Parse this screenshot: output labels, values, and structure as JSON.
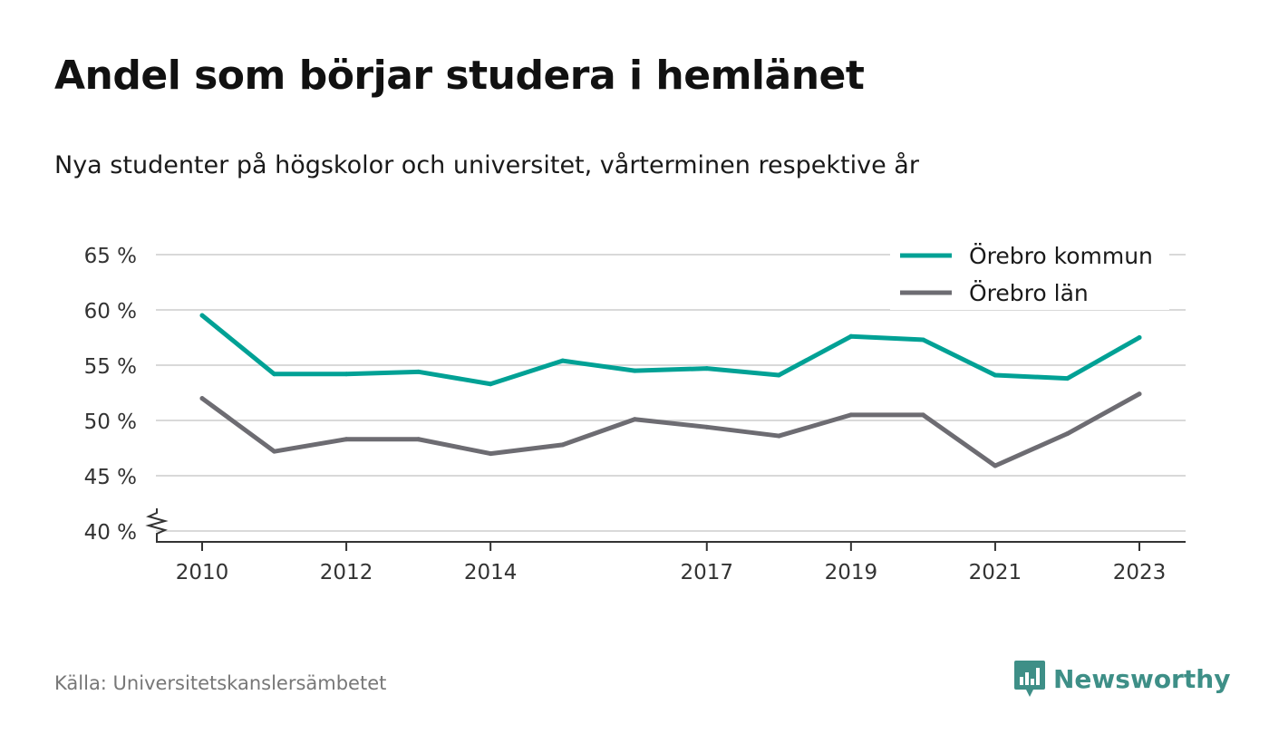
{
  "title": "Andel som börjar studera i hemlänet",
  "subtitle": "Nya studenter på högskolor och universitet, vårterminen respektive år",
  "source": "Källa: Universitetskanslersämbetet",
  "brand": {
    "name": "Newsworthy",
    "icon": "newsworthy-logo-icon",
    "color": "#3e8f87"
  },
  "chart_data": {
    "type": "line",
    "x": [
      2010,
      2011,
      2012,
      2013,
      2014,
      2015,
      2016,
      2017,
      2018,
      2019,
      2020,
      2021,
      2022,
      2023
    ],
    "x_tick_labels": [
      "2010",
      "2012",
      "2014",
      "2017",
      "2019",
      "2021",
      "2023"
    ],
    "y_tick_labels": [
      "40 %",
      "45 %",
      "50 %",
      "55 %",
      "60 %",
      "65 %"
    ],
    "ylim": [
      40,
      65
    ],
    "y_axis_broken": true,
    "grid": true,
    "legend_position": "top-right",
    "series": [
      {
        "name": "Örebro kommun",
        "color": "#00a195",
        "values": [
          59.5,
          54.2,
          54.2,
          54.4,
          53.3,
          55.4,
          54.5,
          54.7,
          54.1,
          57.6,
          57.3,
          54.1,
          53.8,
          57.5
        ]
      },
      {
        "name": "Örebro län",
        "color": "#6d6c72",
        "values": [
          52.0,
          47.2,
          48.3,
          48.3,
          47.0,
          47.8,
          50.1,
          49.4,
          48.6,
          50.5,
          50.5,
          45.9,
          48.8,
          52.4
        ]
      }
    ]
  }
}
